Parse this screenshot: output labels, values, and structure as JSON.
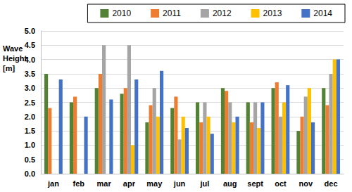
{
  "chart_data": {
    "type": "bar",
    "y_label": "Wave Height [m]",
    "categories": [
      "jan",
      "feb",
      "mar",
      "apr",
      "may",
      "jun",
      "jul",
      "aug",
      "sept",
      "oct",
      "nov",
      "dec"
    ],
    "series": [
      {
        "name": "2010",
        "color": "#548235",
        "values": [
          3.5,
          2.5,
          3.0,
          2.8,
          1.8,
          2.3,
          2.5,
          3.0,
          2.5,
          3.0,
          1.5,
          3.0
        ]
      },
      {
        "name": "2011",
        "color": "#ED7D31",
        "values": [
          2.3,
          2.7,
          3.5,
          3.0,
          2.4,
          2.7,
          1.8,
          2.9,
          1.8,
          3.2,
          2.0,
          2.4
        ]
      },
      {
        "name": "2012",
        "color": "#A5A5A5",
        "values": [
          null,
          null,
          4.5,
          4.5,
          3.0,
          1.2,
          2.5,
          2.5,
          2.5,
          2.0,
          2.7,
          3.5
        ]
      },
      {
        "name": "2013",
        "color": "#FFC000",
        "values": [
          null,
          null,
          null,
          1.0,
          2.0,
          2.0,
          2.0,
          1.8,
          1.6,
          2.5,
          3.0,
          4.0
        ]
      },
      {
        "name": "2014",
        "color": "#4472C4",
        "values": [
          3.3,
          2.0,
          2.6,
          3.3,
          3.6,
          1.6,
          1.4,
          2.0,
          2.5,
          3.1,
          1.8,
          4.0
        ]
      }
    ],
    "ylim": [
      0,
      5
    ],
    "yticks": [
      {
        "value": 0,
        "label": "0.0"
      },
      0.5,
      {
        "value": 1,
        "label": "1.0"
      },
      1.5,
      {
        "value": 2,
        "label": "2.0"
      },
      2.5,
      {
        "value": 3,
        "label": "3.0"
      },
      3.5,
      {
        "value": 4,
        "label": "4.0"
      },
      4.5,
      {
        "value": 5,
        "label": "5.0"
      }
    ],
    "grid": true,
    "legend": "top-right"
  }
}
